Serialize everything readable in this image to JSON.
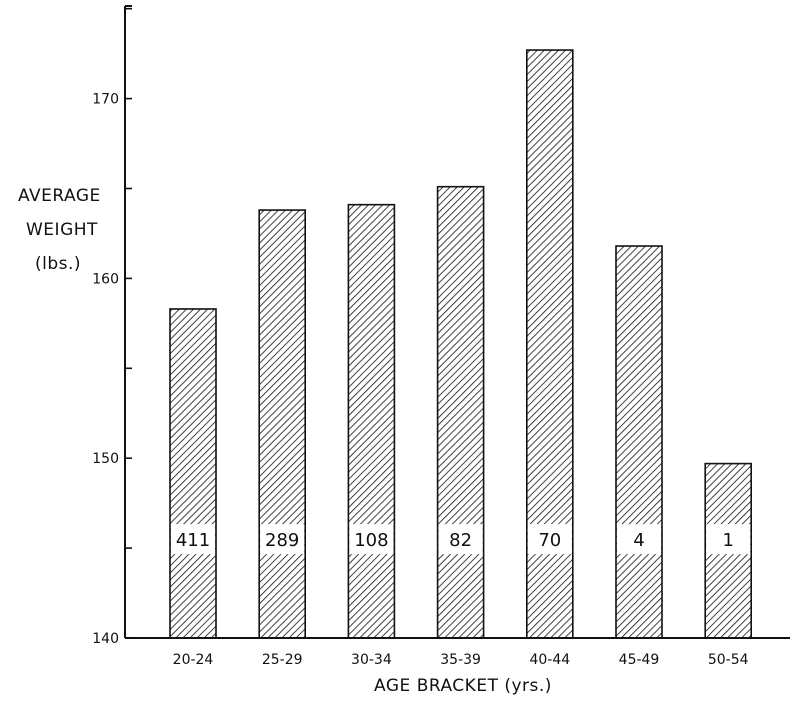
{
  "chart_data": {
    "type": "bar",
    "categories": [
      "20-24",
      "25-29",
      "30-34",
      "35-39",
      "40-44",
      "45-49",
      "50-54"
    ],
    "values": [
      158.3,
      163.8,
      164.1,
      165.1,
      172.7,
      161.8,
      149.7
    ],
    "counts": [
      "411",
      "289",
      "108",
      "82",
      "70",
      "4",
      "1"
    ],
    "ylabel_lines": [
      "AVERAGE",
      "WEIGHT",
      "(lbs.)"
    ],
    "xlabel": "AGE BRACKET (yrs.)",
    "ylim": [
      140,
      175
    ],
    "yticks": [
      140,
      150,
      160,
      170
    ],
    "ytick_labels": [
      "140",
      "150",
      "160",
      "170"
    ],
    "count_band_value": 145.5,
    "grid": false,
    "bar_fill": "hatched",
    "colors": {
      "ink": "#111111",
      "background": "#ffffff"
    }
  }
}
